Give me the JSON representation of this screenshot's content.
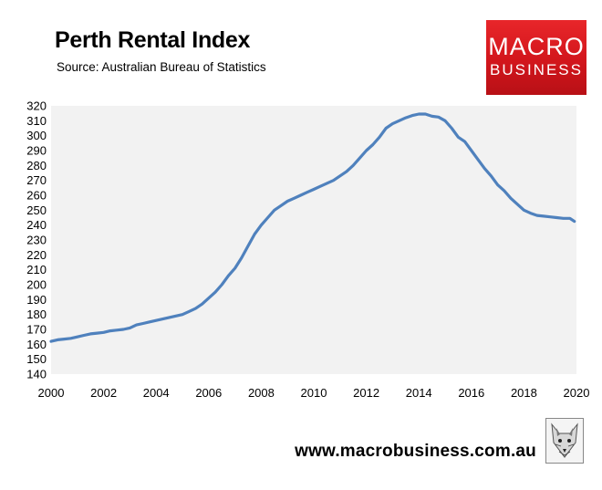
{
  "header": {
    "title": "Perth Rental Index",
    "subtitle": "Source: Australian Bureau of Statistics"
  },
  "logo": {
    "line1": "MACRO",
    "line2": "BUSINESS",
    "bg_color": "#d51a1f"
  },
  "footer": {
    "url": "www.macrobusiness.com.au",
    "badge_icon": "fox-mascot-icon"
  },
  "chart_data": {
    "type": "line",
    "title": "Perth Rental Index",
    "subtitle": "Source: Australian Bureau of Statistics",
    "xlabel": "",
    "ylabel": "",
    "xlim": [
      2000,
      2020
    ],
    "ylim": [
      140,
      320
    ],
    "x_ticks": [
      "2000",
      "2002",
      "2004",
      "2006",
      "2008",
      "2010",
      "2012",
      "2014",
      "2016",
      "2018",
      "2020"
    ],
    "y_ticks": [
      "140",
      "150",
      "160",
      "170",
      "180",
      "190",
      "200",
      "210",
      "220",
      "230",
      "240",
      "250",
      "260",
      "270",
      "280",
      "290",
      "300",
      "310",
      "320"
    ],
    "grid": false,
    "plot_background": "#f2f2f2",
    "series": [
      {
        "color": "#4f81bd",
        "x": [
          2000.0,
          2000.25,
          2000.5,
          2000.75,
          2001.0,
          2001.25,
          2001.5,
          2001.75,
          2002.0,
          2002.25,
          2002.5,
          2002.75,
          2003.0,
          2003.25,
          2003.5,
          2003.75,
          2004.0,
          2004.25,
          2004.5,
          2004.75,
          2005.0,
          2005.25,
          2005.5,
          2005.75,
          2006.0,
          2006.25,
          2006.5,
          2006.75,
          2007.0,
          2007.25,
          2007.5,
          2007.75,
          2008.0,
          2008.25,
          2008.5,
          2008.75,
          2009.0,
          2009.25,
          2009.5,
          2009.75,
          2010.0,
          2010.25,
          2010.5,
          2010.75,
          2011.0,
          2011.25,
          2011.5,
          2011.75,
          2012.0,
          2012.25,
          2012.5,
          2012.75,
          2013.0,
          2013.25,
          2013.5,
          2013.75,
          2014.0,
          2014.25,
          2014.5,
          2014.75,
          2015.0,
          2015.25,
          2015.5,
          2015.75,
          2016.0,
          2016.25,
          2016.5,
          2016.75,
          2017.0,
          2017.25,
          2017.5,
          2017.75,
          2018.0,
          2018.25,
          2018.5,
          2018.75,
          2019.0,
          2019.25,
          2019.5,
          2019.75,
          2019.92
        ],
        "y": [
          162,
          163,
          163.5,
          164,
          165,
          166,
          167,
          167.5,
          168,
          169,
          169.5,
          170,
          171,
          173,
          174,
          175,
          176,
          177,
          178,
          179,
          180,
          182,
          184,
          187,
          191,
          195,
          200,
          206,
          211,
          218,
          226,
          234,
          240,
          245,
          250,
          253,
          256,
          258,
          260,
          262,
          264,
          266,
          268,
          270,
          273,
          276,
          280,
          285,
          290,
          294,
          299,
          305,
          308,
          310,
          312,
          313.5,
          314.5,
          314.5,
          313,
          312.5,
          310,
          305,
          299,
          296,
          290,
          284,
          278,
          273,
          267,
          263,
          258,
          254,
          250,
          248,
          246.5,
          246,
          245.5,
          245,
          244.5,
          244.5,
          242.5
        ]
      }
    ]
  }
}
